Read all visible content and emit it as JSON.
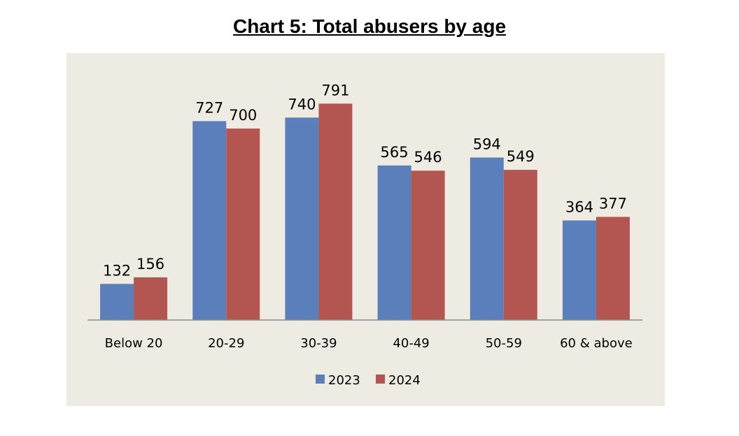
{
  "chart_data": {
    "type": "bar",
    "title": "Chart 5: Total abusers by age",
    "xlabel": "",
    "ylabel": "",
    "categories": [
      "Below 20",
      "20-29",
      "30-39",
      "40-49",
      "50-59",
      "60 & above"
    ],
    "series": [
      {
        "name": "2023",
        "color": "#5b7fba",
        "values": [
          132,
          727,
          740,
          565,
          594,
          364
        ]
      },
      {
        "name": "2024",
        "color": "#b35652",
        "values": [
          156,
          700,
          791,
          546,
          549,
          377
        ]
      }
    ],
    "ylim": [
      0,
      1000
    ],
    "grid": false,
    "legend": "bottom-center",
    "data_labels": true
  }
}
